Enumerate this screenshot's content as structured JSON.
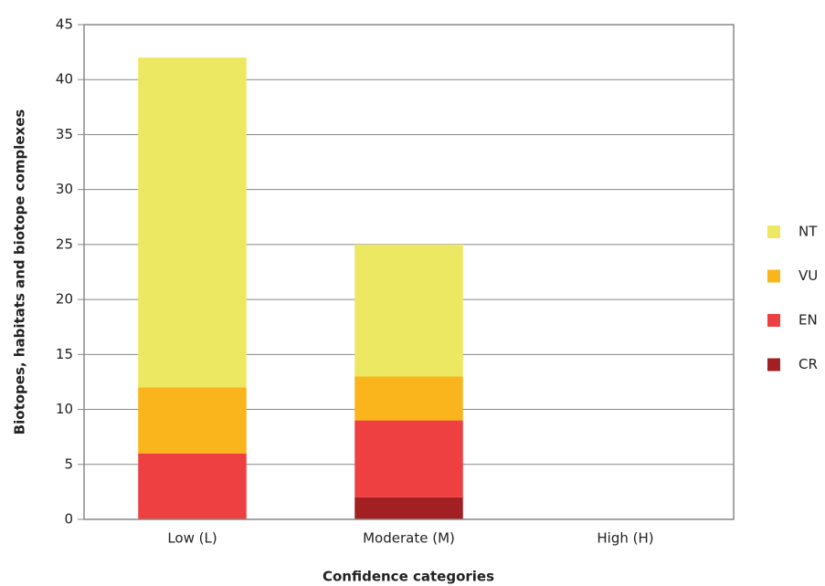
{
  "chart_data": {
    "type": "stacked_bar",
    "categories": [
      "Low (L)",
      "Moderate (M)",
      "High (H)"
    ],
    "series": [
      {
        "name": "CR",
        "color": "#a21f22",
        "values": [
          0,
          2,
          0
        ]
      },
      {
        "name": "EN",
        "color": "#ee4040",
        "values": [
          6,
          7,
          0
        ]
      },
      {
        "name": "VU",
        "color": "#f9b51b",
        "values": [
          6,
          4,
          0
        ]
      },
      {
        "name": "NT",
        "color": "#ede862",
        "values": [
          30,
          12,
          0
        ]
      }
    ],
    "xlabel": "Confidence categories",
    "ylabel": "Biotopes, habitats and biotope complexes",
    "ylim": [
      0,
      45
    ],
    "yticks": [
      0,
      5,
      10,
      15,
      20,
      25,
      30,
      35,
      40,
      45
    ],
    "grid": true,
    "legend": "right"
  }
}
